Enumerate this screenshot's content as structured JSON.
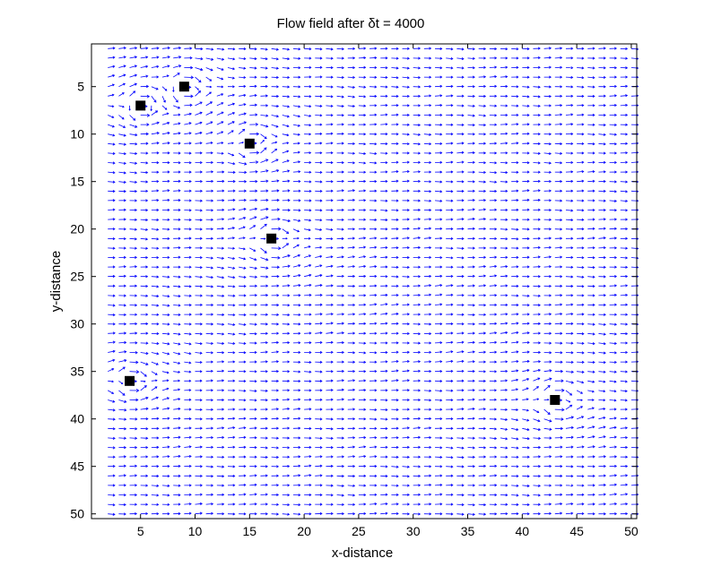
{
  "chart_data": {
    "type": "quiver",
    "title": "Flow field after  δt = 4000",
    "xlabel": "x-distance",
    "ylabel": "y-distance",
    "xlim": [
      0.5,
      50.5
    ],
    "ylim": [
      0.5,
      50.5
    ],
    "y_axis_reversed": true,
    "xticks": [
      5,
      10,
      15,
      20,
      25,
      30,
      35,
      40,
      45,
      50
    ],
    "yticks": [
      5,
      10,
      15,
      20,
      25,
      30,
      35,
      40,
      45,
      50
    ],
    "grid": false,
    "vector_field": {
      "x_range": [
        2,
        50
      ],
      "y_range": [
        1,
        50
      ],
      "step": 1,
      "color": "#0000ff",
      "dominant_direction": "+x"
    },
    "obstacles": [
      {
        "x": 9,
        "y": 5
      },
      {
        "x": 5,
        "y": 7
      },
      {
        "x": 15,
        "y": 11
      },
      {
        "x": 17,
        "y": 21
      },
      {
        "x": 4,
        "y": 36
      },
      {
        "x": 43,
        "y": 38
      }
    ],
    "obstacle_color": "#000000"
  }
}
